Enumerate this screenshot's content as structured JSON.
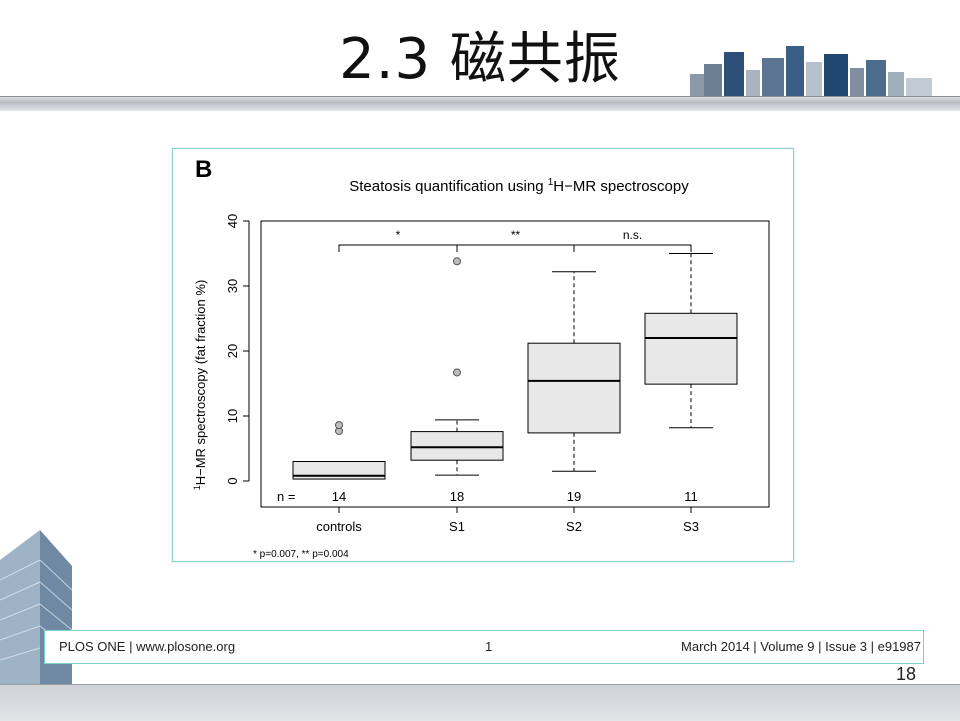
{
  "slide": {
    "title": "2.3 磁共振",
    "page_number": "18"
  },
  "footer": {
    "journal": "PLOS ONE | www.plosone.org",
    "page": "1",
    "issue": "March 2014 | Volume 9 | Issue 3 | e91987"
  },
  "chart_data": {
    "type": "boxplot",
    "panel_label": "B",
    "title_prefix": "Steatosis quantification using ",
    "title_superscript": "1",
    "title_suffix": "H−MR spectroscopy",
    "ylabel_superscript": "1",
    "ylabel": "H−MR spectroscopy (fat fraction %)",
    "ylim": [
      -4,
      40
    ],
    "yticks": [
      0,
      10,
      20,
      30,
      40
    ],
    "categories": [
      "controls",
      "S1",
      "S2",
      "S3"
    ],
    "n_prefix": "n =",
    "n": [
      "14",
      "18",
      "19",
      "11"
    ],
    "boxes": [
      {
        "whislo": 0.3,
        "q1": 0.3,
        "med": 0.8,
        "q3": 3.0,
        "whishi": 3.0,
        "fliers": [
          7.7,
          8.6
        ]
      },
      {
        "whislo": 0.9,
        "q1": 3.2,
        "med": 5.2,
        "q3": 7.6,
        "whishi": 9.4,
        "fliers": [
          16.7,
          33.8
        ]
      },
      {
        "whislo": 1.5,
        "q1": 7.4,
        "med": 15.4,
        "q3": 21.2,
        "whishi": 32.2,
        "fliers": []
      },
      {
        "whislo": 8.2,
        "q1": 14.9,
        "med": 22.0,
        "q3": 25.8,
        "whishi": 35.0,
        "fliers": []
      }
    ],
    "comparisons": [
      {
        "from": 0,
        "to": 1,
        "label": "*"
      },
      {
        "from": 1,
        "to": 2,
        "label": "**"
      },
      {
        "from": 2,
        "to": 3,
        "label": "n.s."
      }
    ],
    "footnote": "* p=0.007, ** p=0.004",
    "colors": {
      "box_fill": "#e8e8e8",
      "stroke": "#000000",
      "outlier_fill": "#bdbdbd"
    }
  }
}
